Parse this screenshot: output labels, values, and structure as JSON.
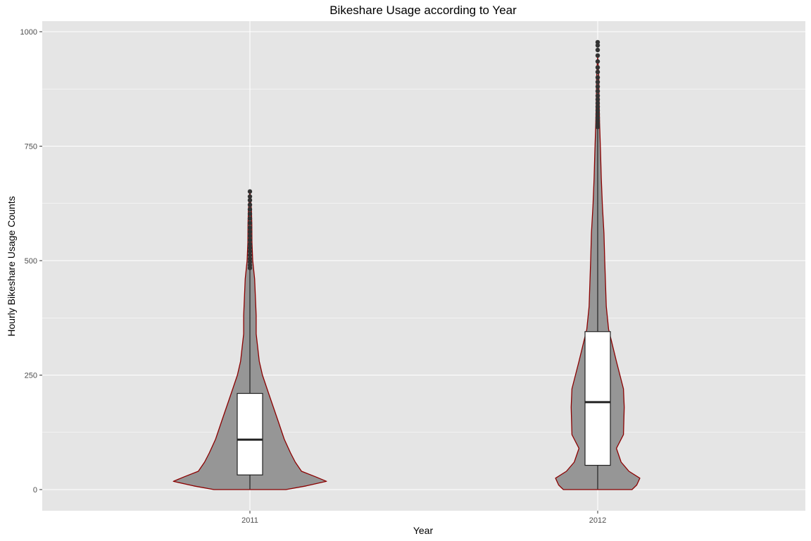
{
  "chart_data": {
    "type": "violin",
    "title": "Bikeshare Usage according to Year",
    "xlabel": "Year",
    "ylabel": "Hourly Bikeshare Usage Counts",
    "categories": [
      "2011",
      "2012"
    ],
    "ylim": [
      -45,
      1000
    ],
    "yticks": [
      0,
      250,
      500,
      750,
      1000
    ],
    "grid": true,
    "colors": {
      "panel": "#e5e5e5",
      "grid": "#ffffff",
      "violin_fill": "#969696",
      "violin_outline": "#8b0000",
      "box_fill": "#ffffff",
      "box_line": "#222222",
      "outlier": "#333333"
    },
    "violins": [
      {
        "category": "2011",
        "min": 1,
        "max": 651,
        "density": [
          [
            0,
            0.23
          ],
          [
            8,
            0.36
          ],
          [
            18,
            0.49
          ],
          [
            28,
            0.42
          ],
          [
            40,
            0.33
          ],
          [
            60,
            0.29
          ],
          [
            80,
            0.26
          ],
          [
            110,
            0.22
          ],
          [
            150,
            0.18
          ],
          [
            180,
            0.15
          ],
          [
            210,
            0.12
          ],
          [
            250,
            0.08
          ],
          [
            280,
            0.06
          ],
          [
            310,
            0.05
          ],
          [
            340,
            0.04
          ],
          [
            380,
            0.04
          ],
          [
            420,
            0.035
          ],
          [
            460,
            0.03
          ],
          [
            500,
            0.018
          ],
          [
            540,
            0.013
          ],
          [
            580,
            0.012
          ],
          [
            610,
            0.01
          ],
          [
            640,
            0.003
          ],
          [
            651,
            0
          ]
        ],
        "box": {
          "q1": 32,
          "median": 109,
          "q3": 210,
          "lower_whisker": 1,
          "upper_whisker": 480
        },
        "outliers": [
          484,
          490,
          497,
          504,
          512,
          520,
          528,
          536,
          545,
          554,
          563,
          572,
          582,
          592,
          602,
          612,
          622,
          632,
          640,
          651
        ]
      },
      {
        "category": "2012",
        "min": 1,
        "max": 977,
        "density": [
          [
            0,
            0.22
          ],
          [
            10,
            0.25
          ],
          [
            25,
            0.27
          ],
          [
            40,
            0.2
          ],
          [
            60,
            0.15
          ],
          [
            90,
            0.12
          ],
          [
            120,
            0.165
          ],
          [
            180,
            0.17
          ],
          [
            220,
            0.165
          ],
          [
            280,
            0.12
          ],
          [
            350,
            0.07
          ],
          [
            400,
            0.055
          ],
          [
            450,
            0.05
          ],
          [
            500,
            0.045
          ],
          [
            560,
            0.04
          ],
          [
            620,
            0.03
          ],
          [
            680,
            0.023
          ],
          [
            740,
            0.018
          ],
          [
            800,
            0.012
          ],
          [
            850,
            0.009
          ],
          [
            900,
            0.007
          ],
          [
            930,
            0.003
          ],
          [
            945,
            0
          ]
        ],
        "box": {
          "q1": 53,
          "median": 191,
          "q3": 345,
          "lower_whisker": 1,
          "upper_whisker": 788
        },
        "outliers": [
          792,
          798,
          805,
          812,
          820,
          828,
          836,
          844,
          852,
          860,
          870,
          880,
          890,
          900,
          912,
          922,
          935,
          948,
          960,
          970,
          977
        ]
      }
    ]
  }
}
